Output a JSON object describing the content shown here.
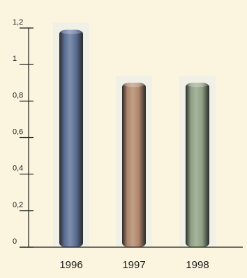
{
  "chart_data": {
    "type": "bar",
    "categories": [
      "1996",
      "1997",
      "1998"
    ],
    "values": [
      1.19,
      0.9,
      0.9
    ],
    "ylim": [
      0,
      1.2
    ],
    "y_ticks": [
      "0",
      "0,2",
      "0,4",
      "0,6",
      "0,8",
      "1",
      "1,2"
    ],
    "grid": false,
    "legend": "none",
    "colors": {
      "background": "#fbf5df",
      "bar_backdrop": "#efefe7",
      "axis": "#1a1a1a",
      "bars": [
        "#5a6e96",
        "#b0856a",
        "#8ea083"
      ]
    }
  }
}
